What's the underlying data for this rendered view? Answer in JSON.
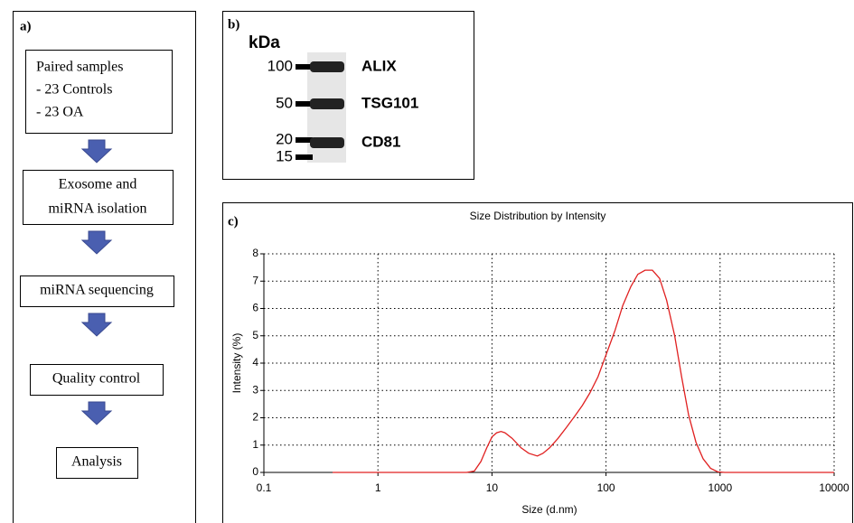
{
  "panel_a": {
    "label": "a)",
    "steps": [
      {
        "lines": [
          "Paired samples",
          " - 23 Controls",
          " - 23 OA"
        ]
      },
      {
        "lines": [
          "Exosome and",
          "miRNA isolation"
        ]
      },
      {
        "lines": [
          "miRNA sequencing"
        ]
      },
      {
        "lines": [
          "Quality control"
        ]
      },
      {
        "lines": [
          "Analysis"
        ]
      }
    ]
  },
  "panel_b": {
    "label": "b)",
    "unit": "kDa",
    "markers": [
      "100",
      "50",
      "20",
      "15"
    ],
    "bands": [
      "ALIX",
      "TSG101",
      "CD81"
    ]
  },
  "panel_c_label": "c)",
  "chart_data": {
    "type": "line",
    "title": "Size Distribution by Intensity",
    "x_label": "Size (d.nm)",
    "y_label": "Intensity (%)",
    "xscale": "log",
    "grid": true,
    "color": "#e02020",
    "x": [
      0.4,
      1,
      2,
      4,
      6,
      7,
      8,
      9,
      10,
      11,
      12,
      13,
      15,
      18,
      21,
      25,
      28,
      32,
      38,
      45,
      53,
      62,
      72,
      85,
      100,
      120,
      140,
      165,
      190,
      220,
      255,
      295,
      340,
      400,
      460,
      530,
      615,
      710,
      825,
      955,
      1100,
      1300,
      2000,
      4000,
      6000,
      10000
    ],
    "values": [
      0,
      0,
      0,
      0,
      0,
      0.05,
      0.4,
      0.9,
      1.3,
      1.45,
      1.5,
      1.45,
      1.25,
      0.9,
      0.7,
      0.6,
      0.7,
      0.9,
      1.25,
      1.65,
      2.05,
      2.45,
      2.9,
      3.5,
      4.3,
      5.2,
      6.1,
      6.8,
      7.25,
      7.4,
      7.4,
      7.1,
      6.3,
      5.0,
      3.5,
      2.1,
      1.1,
      0.5,
      0.15,
      0.02,
      0,
      0,
      0,
      0,
      0,
      0
    ],
    "xlim": [
      0.1,
      10000
    ],
    "xticks": [
      0.1,
      1,
      10,
      100,
      1000,
      10000
    ],
    "ylim": [
      0,
      8
    ],
    "yticks": [
      0,
      1,
      2,
      3,
      4,
      5,
      6,
      7,
      8
    ]
  }
}
